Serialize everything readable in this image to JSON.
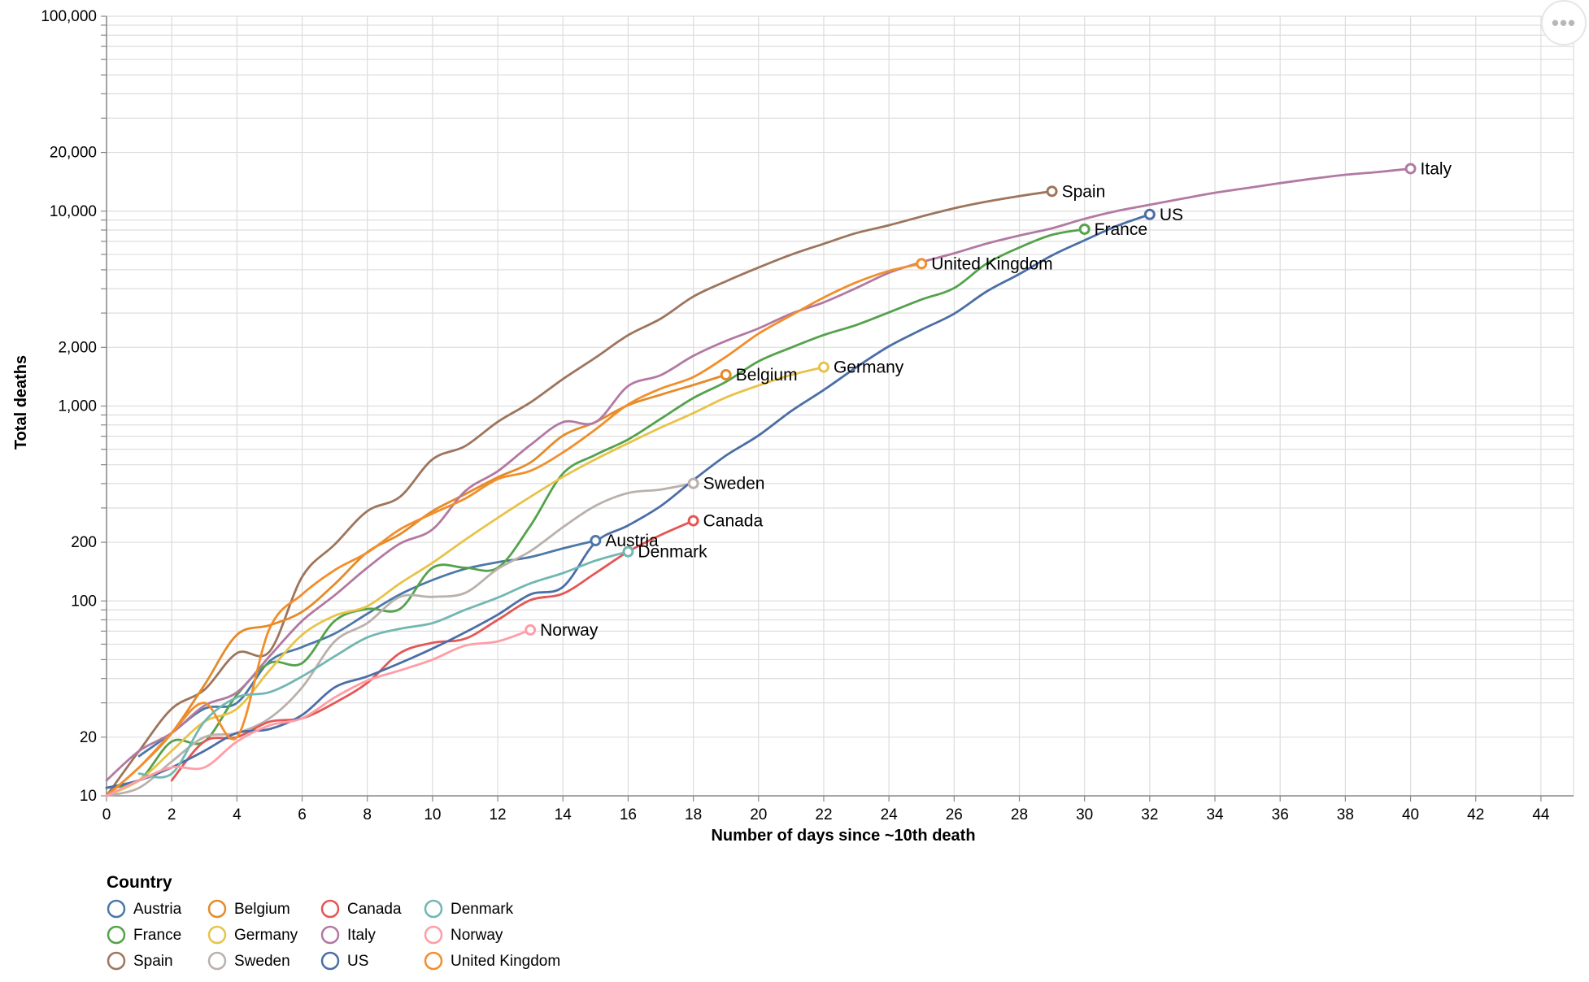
{
  "menu": {
    "icon": "more-horizontal-icon",
    "glyph": "•••"
  },
  "chart_data": {
    "type": "line",
    "xlabel": "Number of days since ~10th death",
    "ylabel": "Total deaths",
    "y_scale": "log",
    "xlim": [
      0,
      45
    ],
    "ylim": [
      10,
      100000
    ],
    "x_ticks": [
      0,
      2,
      4,
      6,
      8,
      10,
      12,
      14,
      16,
      18,
      20,
      22,
      24,
      26,
      28,
      30,
      32,
      34,
      36,
      38,
      40,
      42,
      44
    ],
    "x_tick_labels": [
      "0",
      "2",
      "4",
      "6",
      "8",
      "10",
      "12",
      "14",
      "16",
      "18",
      "20",
      "22",
      "24",
      "26",
      "28",
      "30",
      "32",
      "34",
      "36",
      "38",
      "40",
      "42",
      "44"
    ],
    "y_ticks": [
      10,
      20,
      100,
      200,
      1000,
      2000,
      10000,
      20000,
      100000
    ],
    "y_tick_labels": [
      "10",
      "20",
      "100",
      "200",
      "1,000",
      "2,000",
      "10,000",
      "20,000",
      "100,000"
    ],
    "grid": true,
    "legend": {
      "title": "Country",
      "placement": "bottom-left",
      "entries": [
        "Austria",
        "Belgium",
        "Canada",
        "Denmark",
        "France",
        "Germany",
        "Italy",
        "Norway",
        "Spain",
        "Sweden",
        "US",
        "United Kingdom"
      ]
    },
    "series": [
      {
        "name": "Austria",
        "color": "#4c78a8",
        "label": "Austria",
        "x": [
          1,
          2,
          3,
          4,
          5,
          6,
          7,
          8,
          9,
          10,
          11,
          12,
          13,
          14,
          15
        ],
        "y": [
          16,
          21,
          28,
          30,
          49,
          58,
          68,
          86,
          108,
          128,
          146,
          158,
          168,
          186,
          204
        ]
      },
      {
        "name": "France",
        "color": "#54a24b",
        "label": "France",
        "x": [
          0,
          1,
          2,
          3,
          4,
          5,
          6,
          7,
          8,
          9,
          10,
          11,
          12,
          13,
          14,
          15,
          16,
          17,
          18,
          19,
          20,
          21,
          22,
          23,
          24,
          25,
          26,
          27,
          28,
          29,
          30
        ],
        "y": [
          11,
          12,
          19,
          19,
          33,
          48,
          48,
          79,
          91,
          91,
          148,
          148,
          148,
          243,
          450,
          562,
          674,
          860,
          1100,
          1331,
          1696,
          1995,
          2314,
          2606,
          3024,
          3523,
          4032,
          5387,
          6507,
          7560,
          8078
        ]
      },
      {
        "name": "Spain",
        "color": "#9d755d",
        "label": "Spain",
        "x": [
          0,
          1,
          2,
          3,
          4,
          5,
          6,
          7,
          8,
          9,
          10,
          11,
          12,
          13,
          14,
          15,
          16,
          17,
          18,
          19,
          20,
          21,
          22,
          23,
          24,
          25,
          26,
          27,
          28,
          29
        ],
        "y": [
          10,
          17,
          28,
          35,
          54,
          55,
          133,
          195,
          289,
          342,
          533,
          623,
          830,
          1043,
          1375,
          1772,
          2311,
          2808,
          3647,
          4365,
          5138,
          5982,
          6803,
          7716,
          8464,
          9387,
          10348,
          11198,
          11947,
          12641
        ]
      },
      {
        "name": "Belgium",
        "color": "#e58a2a",
        "label": "Belgium",
        "x": [
          0,
          1,
          2,
          3,
          4,
          5,
          6,
          7,
          8,
          9,
          10,
          11,
          12,
          13,
          14,
          15,
          16,
          17,
          18,
          19
        ],
        "y": [
          10,
          14,
          21,
          37,
          67,
          75,
          88,
          122,
          178,
          220,
          289,
          353,
          431,
          513,
          705,
          828,
          1011,
          1143,
          1283,
          1447
        ]
      },
      {
        "name": "Germany",
        "color": "#e8c34a",
        "label": "Germany",
        "x": [
          0,
          1,
          2,
          3,
          4,
          5,
          6,
          7,
          8,
          9,
          10,
          11,
          12,
          13,
          14,
          15,
          16,
          17,
          18,
          19,
          20,
          21,
          22
        ],
        "y": [
          10,
          12,
          17,
          24,
          28,
          44,
          67,
          84,
          94,
          123,
          157,
          206,
          267,
          342,
          433,
          533,
          645,
          775,
          920,
          1107,
          1275,
          1444,
          1584
        ]
      },
      {
        "name": "Italy",
        "color": "#b279a2",
        "label": "Italy",
        "x": [
          0,
          1,
          2,
          3,
          4,
          5,
          6,
          7,
          8,
          9,
          10,
          11,
          12,
          13,
          14,
          15,
          16,
          17,
          18,
          19,
          20,
          21,
          22,
          23,
          24,
          25,
          26,
          27,
          28,
          29,
          30,
          31,
          32,
          33,
          34,
          35,
          36,
          37,
          38,
          39,
          40
        ],
        "y": [
          12,
          17,
          21,
          29,
          34,
          52,
          79,
          107,
          148,
          197,
          233,
          366,
          463,
          631,
          827,
          827,
          1266,
          1441,
          1809,
          2158,
          2503,
          2978,
          3405,
          4032,
          4825,
          5476,
          6077,
          6820,
          7503,
          8165,
          9134,
          10023,
          10779,
          11591,
          12428,
          13155,
          13915,
          14681,
          15362,
          15887,
          16523
        ]
      },
      {
        "name": "Sweden",
        "color": "#bab0ac",
        "label": "Sweden",
        "x": [
          0,
          1,
          2,
          3,
          4,
          5,
          6,
          7,
          8,
          9,
          10,
          11,
          12,
          13,
          14,
          15,
          16,
          17,
          18
        ],
        "y": [
          10,
          11,
          15,
          20,
          21,
          25,
          36,
          62,
          77,
          105,
          105,
          110,
          146,
          180,
          239,
          308,
          358,
          373,
          401
        ]
      },
      {
        "name": "Canada",
        "color": "#e45756",
        "label": "Canada",
        "x": [
          2,
          3,
          4,
          5,
          6,
          7,
          8,
          9,
          10,
          11,
          12,
          13,
          14,
          15,
          16,
          17,
          18
        ],
        "y": [
          12,
          19,
          20,
          24,
          25,
          30,
          38,
          54,
          61,
          64,
          80,
          101,
          109,
          139,
          179,
          218,
          258
        ]
      },
      {
        "name": "US",
        "color": "#4c6ea6",
        "label": "US",
        "x": [
          0,
          1,
          2,
          3,
          4,
          5,
          6,
          7,
          8,
          9,
          10,
          11,
          12,
          13,
          14,
          15,
          16,
          17,
          18,
          19,
          20,
          21,
          22,
          23,
          24,
          25,
          26,
          27,
          28,
          29,
          30,
          31,
          32
        ],
        "y": [
          11,
          12,
          14,
          17,
          21,
          22,
          26,
          36,
          41,
          48,
          57,
          69,
          85,
          108,
          118,
          200,
          244,
          307,
          417,
          557,
          706,
          942,
          1209,
          1581,
          2026,
          2467,
          2978,
          3873,
          4757,
          5926,
          7087,
          8407,
          9619
        ]
      },
      {
        "name": "United Kingdom",
        "color": "#f28e2b",
        "label": "United Kingdom",
        "x": [
          0,
          1,
          2,
          3,
          4,
          5,
          6,
          7,
          8,
          9,
          10,
          11,
          12,
          13,
          14,
          15,
          16,
          17,
          18,
          19,
          20,
          21,
          22,
          23,
          24,
          25
        ],
        "y": [
          10,
          14,
          21,
          30,
          20,
          72,
          108,
          144,
          177,
          233,
          281,
          335,
          422,
          465,
          578,
          759,
          1019,
          1228,
          1408,
          1789,
          2352,
          2921,
          3605,
          4313,
          4934,
          5373
        ]
      },
      {
        "name": "Denmark",
        "color": "#72b7b2",
        "label": "Denmark",
        "x": [
          1,
          2,
          3,
          4,
          5,
          6,
          7,
          8,
          9,
          10,
          11,
          12,
          13,
          14,
          15,
          16
        ],
        "y": [
          13,
          13,
          24,
          32,
          34,
          41,
          52,
          65,
          72,
          77,
          90,
          104,
          123,
          139,
          161,
          179
        ]
      },
      {
        "name": "Norway",
        "color": "#ff9da6",
        "label": "Norway",
        "x": [
          0,
          1,
          2,
          3,
          4,
          5,
          6,
          7,
          8,
          9,
          10,
          11,
          12,
          13
        ],
        "y": [
          10,
          12,
          14,
          14,
          19,
          23,
          25,
          32,
          39,
          44,
          50,
          59,
          62,
          71
        ]
      }
    ]
  }
}
